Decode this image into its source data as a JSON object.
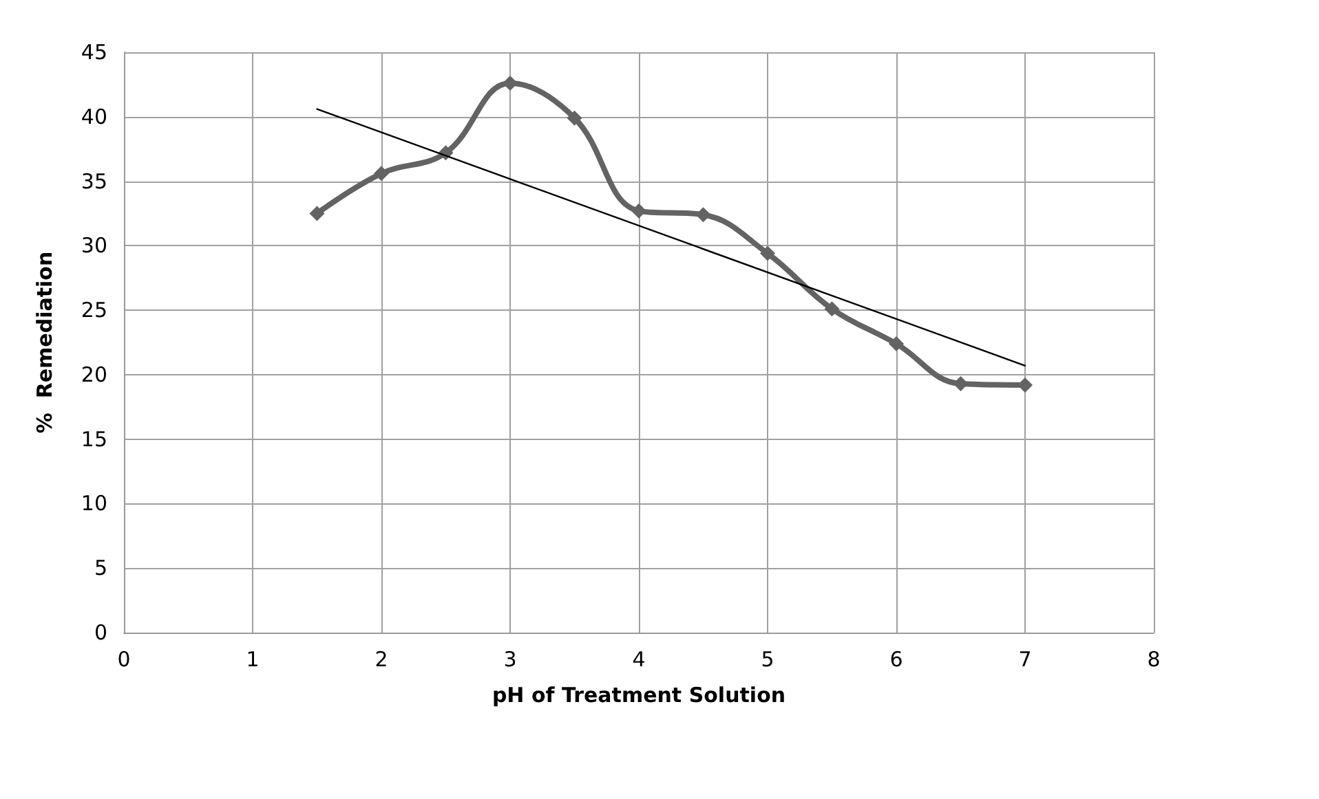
{
  "chart_data": {
    "type": "line",
    "xlabel": "pH of Treatment Solution",
    "ylabel": "%  Remediation",
    "x": [
      1.5,
      2,
      2.5,
      3,
      3.5,
      4,
      4.5,
      5,
      5.5,
      6,
      6.5,
      7
    ],
    "series": [
      {
        "color": "#636363",
        "marker": "diamond",
        "values": [
          32.5,
          35.6,
          37.2,
          42.6,
          39.9,
          32.7,
          32.4,
          29.4,
          25.1,
          22.4,
          19.3,
          19.2
        ]
      },
      {
        "type": "line",
        "color": "#000000",
        "marker": "none",
        "x": [
          1.5,
          7
        ],
        "values": [
          40.6,
          20.7
        ]
      }
    ],
    "xlim": [
      0,
      8
    ],
    "xticks": [
      0,
      1,
      2,
      3,
      4,
      5,
      6,
      7,
      8
    ],
    "ylim": [
      0,
      45
    ],
    "yticks": [
      0,
      5,
      10,
      15,
      20,
      25,
      30,
      35,
      40,
      45
    ],
    "grid": true
  }
}
